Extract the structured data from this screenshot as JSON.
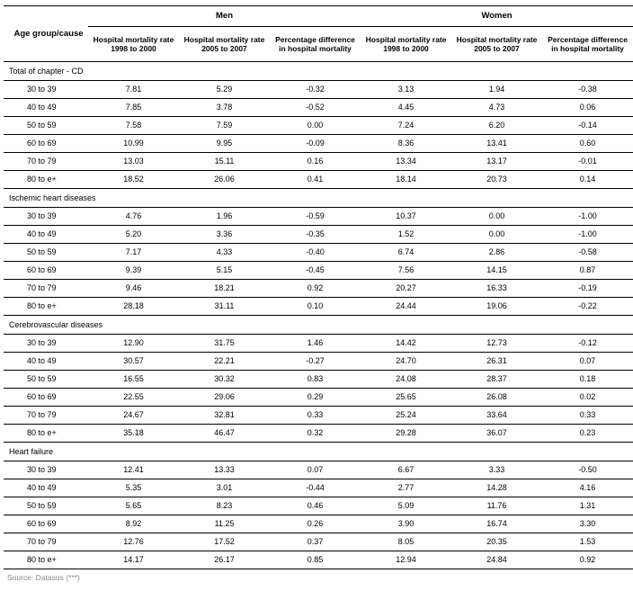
{
  "colors": {
    "text": "#000000",
    "background": "#ffffff",
    "source_text": "#888888",
    "rule": "#000000"
  },
  "fonts": {
    "family": "Arial, Helvetica, sans-serif",
    "header_bold_size_pt": 9.5,
    "subheader_bold_size_pt": 8.5,
    "body_size_pt": 9
  },
  "headers": {
    "row_label": "Age group/cause",
    "men": "Men",
    "women": "Women",
    "col_rate_98_00": "Hospital mortality rate 1998 to 2000",
    "col_rate_05_07": "Hospital mortality rate 2005 to 2007",
    "col_pct_diff": "Percentage difference in hospital mortality"
  },
  "sections": [
    {
      "title": "Total of chapter - CD",
      "rows": [
        {
          "label": "30 to 39",
          "m1": "7.81",
          "m2": "5.29",
          "m3": "-0.32",
          "w1": "3.13",
          "w2": "1.94",
          "w3": "-0.38"
        },
        {
          "label": "40 to 49",
          "m1": "7.85",
          "m2": "3.78",
          "m3": "-0.52",
          "w1": "4.45",
          "w2": "4.73",
          "w3": "0.06"
        },
        {
          "label": "50 to 59",
          "m1": "7.58",
          "m2": "7.59",
          "m3": "0.00",
          "w1": "7.24",
          "w2": "6.20",
          "w3": "-0.14"
        },
        {
          "label": "60 to 69",
          "m1": "10.99",
          "m2": "9.95",
          "m3": "-0.09",
          "w1": "8.36",
          "w2": "13.41",
          "w3": "0.60"
        },
        {
          "label": "70 to 79",
          "m1": "13.03",
          "m2": "15.11",
          "m3": "0.16",
          "w1": "13.34",
          "w2": "13.17",
          "w3": "-0.01"
        },
        {
          "label": "80 to e+",
          "m1": "18.52",
          "m2": "26.06",
          "m3": "0.41",
          "w1": "18.14",
          "w2": "20.73",
          "w3": "0.14"
        }
      ]
    },
    {
      "title": "Ischemic heart diseases",
      "rows": [
        {
          "label": "30 to 39",
          "m1": "4.76",
          "m2": "1.96",
          "m3": "-0.59",
          "w1": "10.37",
          "w2": "0.00",
          "w3": "-1.00"
        },
        {
          "label": "40 to 49",
          "m1": "5.20",
          "m2": "3.36",
          "m3": "-0.35",
          "w1": "1.52",
          "w2": "0.00",
          "w3": "-1.00"
        },
        {
          "label": "50 to 59",
          "m1": "7.17",
          "m2": "4.33",
          "m3": "-0.40",
          "w1": "6.74",
          "w2": "2.86",
          "w3": "-0.58"
        },
        {
          "label": "60 to 69",
          "m1": "9.39",
          "m2": "5.15",
          "m3": "-0.45",
          "w1": "7.56",
          "w2": "14.15",
          "w3": "0.87"
        },
        {
          "label": "70 to 79",
          "m1": "9.46",
          "m2": "18.21",
          "m3": "0.92",
          "w1": "20.27",
          "w2": "16.33",
          "w3": "-0.19"
        },
        {
          "label": "80 to e+",
          "m1": "28.18",
          "m2": "31.11",
          "m3": "0.10",
          "w1": "24.44",
          "w2": "19.06",
          "w3": "-0.22"
        }
      ]
    },
    {
      "title": "Cerebrovascular diseases",
      "rows": [
        {
          "label": "30 to 39",
          "m1": "12.90",
          "m2": "31.75",
          "m3": "1.46",
          "w1": "14.42",
          "w2": "12.73",
          "w3": "-0.12"
        },
        {
          "label": "40 to 49",
          "m1": "30.57",
          "m2": "22.21",
          "m3": "-0.27",
          "w1": "24.70",
          "w2": "26.31",
          "w3": "0.07"
        },
        {
          "label": "50 to 59",
          "m1": "16.55",
          "m2": "30.32",
          "m3": "0.83",
          "w1": "24.08",
          "w2": "28.37",
          "w3": "0.18"
        },
        {
          "label": "60 to 69",
          "m1": "22.55",
          "m2": "29.06",
          "m3": "0.29",
          "w1": "25.65",
          "w2": "26.08",
          "w3": "0.02"
        },
        {
          "label": "70 to 79",
          "m1": "24.67",
          "m2": "32.81",
          "m3": "0.33",
          "w1": "25.24",
          "w2": "33.64",
          "w3": "0.33"
        },
        {
          "label": "80 to e+",
          "m1": "35.18",
          "m2": "46.47",
          "m3": "0.32",
          "w1": "29.28",
          "w2": "36.07",
          "w3": "0.23"
        }
      ]
    },
    {
      "title": "Heart failure",
      "rows": [
        {
          "label": "30 to 39",
          "m1": "12.41",
          "m2": "13.33",
          "m3": "0.07",
          "w1": "6.67",
          "w2": "3.33",
          "w3": "-0.50"
        },
        {
          "label": "40 to 49",
          "m1": "5.35",
          "m2": "3.01",
          "m3": "-0.44",
          "w1": "2.77",
          "w2": "14.28",
          "w3": "4.16"
        },
        {
          "label": "50 to 59",
          "m1": "5.65",
          "m2": "8.23",
          "m3": "0.46",
          "w1": "5.09",
          "w2": "11.76",
          "w3": "1.31"
        },
        {
          "label": "60 to 69",
          "m1": "8.92",
          "m2": "11.25",
          "m3": "0.26",
          "w1": "3.90",
          "w2": "16.74",
          "w3": "3.30"
        },
        {
          "label": "70 to 79",
          "m1": "12.76",
          "m2": "17.52",
          "m3": "0.37",
          "w1": "8.05",
          "w2": "20.35",
          "w3": "1.53"
        },
        {
          "label": "80 to e+",
          "m1": "14.17",
          "m2": "26.17",
          "m3": "0.85",
          "w1": "12.94",
          "w2": "24.84",
          "w3": "0.92"
        }
      ]
    }
  ],
  "source_line": "Source: Datasus (***)"
}
